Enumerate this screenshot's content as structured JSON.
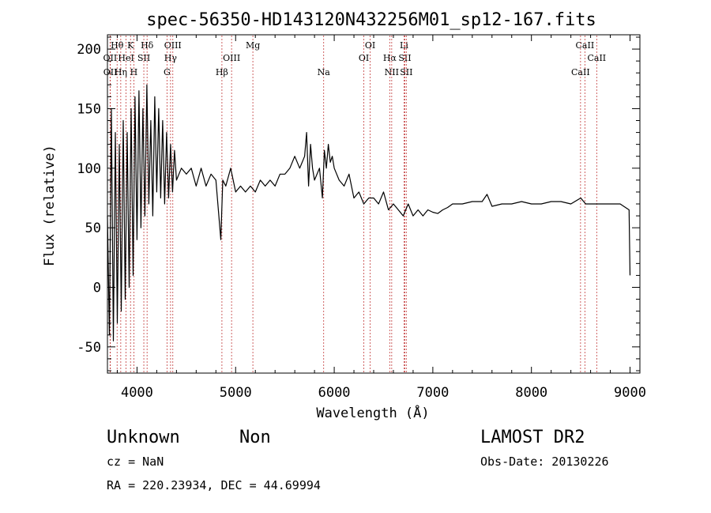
{
  "chart_data": {
    "type": "line",
    "title": "spec-56350-HD143120N432256M01_sp12-167.fits",
    "xlabel": "Wavelength (Å)",
    "ylabel": "Flux (relative)",
    "xlim": [
      3700,
      9100
    ],
    "ylim": [
      -72,
      212
    ],
    "x_ticks": [
      4000,
      5000,
      6000,
      7000,
      8000,
      9000
    ],
    "y_ticks": [
      -50,
      0,
      50,
      100,
      150,
      200
    ],
    "series": [
      {
        "x": [
          3700,
          3720,
          3740,
          3760,
          3780,
          3800,
          3820,
          3840,
          3860,
          3880,
          3900,
          3920,
          3940,
          3960,
          3980,
          4000,
          4020,
          4040,
          4060,
          4080,
          4100,
          4120,
          4140,
          4160,
          4180,
          4200,
          4220,
          4240,
          4260,
          4280,
          4300,
          4320,
          4340,
          4360,
          4380,
          4400,
          4450,
          4500,
          4550,
          4600,
          4650,
          4700,
          4750,
          4800,
          4850,
          4870,
          4900,
          4950,
          5000,
          5050,
          5100,
          5150,
          5200,
          5250,
          5300,
          5350,
          5400,
          5450,
          5500,
          5550,
          5600,
          5650,
          5700,
          5720,
          5740,
          5760,
          5780,
          5800,
          5850,
          5880,
          5900,
          5920,
          5940,
          5960,
          5980,
          6000,
          6050,
          6100,
          6150,
          6200,
          6250,
          6300,
          6350,
          6400,
          6450,
          6500,
          6550,
          6600,
          6650,
          6700,
          6750,
          6800,
          6850,
          6900,
          6950,
          7000,
          7050,
          7100,
          7150,
          7200,
          7300,
          7400,
          7500,
          7550,
          7600,
          7700,
          7800,
          7900,
          8000,
          8100,
          8200,
          8300,
          8400,
          8500,
          8550,
          8600,
          8700,
          8800,
          8900,
          8990,
          9000
        ],
        "y": [
          60,
          -40,
          150,
          -45,
          130,
          -30,
          120,
          -20,
          140,
          -10,
          130,
          0,
          150,
          10,
          160,
          40,
          165,
          50,
          150,
          60,
          170,
          70,
          140,
          60,
          160,
          80,
          150,
          75,
          140,
          70,
          130,
          75,
          120,
          80,
          115,
          90,
          100,
          95,
          100,
          85,
          100,
          85,
          95,
          90,
          40,
          90,
          85,
          100,
          80,
          85,
          80,
          85,
          80,
          90,
          85,
          90,
          85,
          95,
          95,
          100,
          110,
          100,
          110,
          130,
          85,
          120,
          100,
          90,
          100,
          75,
          115,
          100,
          120,
          105,
          110,
          100,
          90,
          85,
          95,
          75,
          80,
          70,
          75,
          75,
          70,
          80,
          65,
          70,
          65,
          60,
          70,
          60,
          65,
          60,
          65,
          63,
          62,
          65,
          67,
          70,
          70,
          72,
          72,
          78,
          68,
          70,
          70,
          72,
          70,
          70,
          72,
          72,
          70,
          75,
          70,
          70,
          70,
          70,
          70,
          65,
          10
        ]
      }
    ],
    "spectral_lines": [
      {
        "label": "Hθ",
        "x": 3798,
        "row": 1
      },
      {
        "label": "K",
        "x": 3934,
        "row": 1
      },
      {
        "label": "Hδ",
        "x": 4102,
        "row": 1
      },
      {
        "label": "OIII",
        "x": 4363,
        "row": 1
      },
      {
        "label": "Mg",
        "x": 5175,
        "row": 1
      },
      {
        "label": "OI",
        "x": 6364,
        "row": 1
      },
      {
        "label": "Li",
        "x": 6708,
        "row": 1
      },
      {
        "label": "CaII",
        "x": 8542,
        "row": 1
      },
      {
        "label": "OII",
        "x": 3727,
        "row": 2
      },
      {
        "label": "HeI",
        "x": 3889,
        "row": 2
      },
      {
        "label": "SII",
        "x": 4069,
        "row": 2
      },
      {
        "label": "Hγ",
        "x": 4340,
        "row": 2
      },
      {
        "label": "OIII",
        "x": 4959,
        "row": 2
      },
      {
        "label": "OI",
        "x": 6300,
        "row": 2
      },
      {
        "label": "Hα",
        "x": 6563,
        "row": 2
      },
      {
        "label": "SII",
        "x": 6716,
        "row": 2
      },
      {
        "label": "CaII",
        "x": 8662,
        "row": 2
      },
      {
        "label": "OII",
        "x": 3729,
        "row": 3
      },
      {
        "label": "Hη",
        "x": 3835,
        "row": 3
      },
      {
        "label": "H",
        "x": 3968,
        "row": 3
      },
      {
        "label": "G",
        "x": 4304,
        "row": 3
      },
      {
        "label": "Hβ",
        "x": 4861,
        "row": 3
      },
      {
        "label": "Na",
        "x": 5893,
        "row": 3
      },
      {
        "label": "NII",
        "x": 6583,
        "row": 3
      },
      {
        "label": "SII",
        "x": 6731,
        "row": 3
      },
      {
        "label": "CaII",
        "x": 8498,
        "row": 3
      }
    ]
  },
  "info": {
    "class": "Unknown",
    "subclass": "Non",
    "survey": "LAMOST DR2",
    "cz": "cz = NaN",
    "obs_date": "Obs-Date: 20130226",
    "coords": "RA = 220.23934, DEC =  44.69994"
  }
}
